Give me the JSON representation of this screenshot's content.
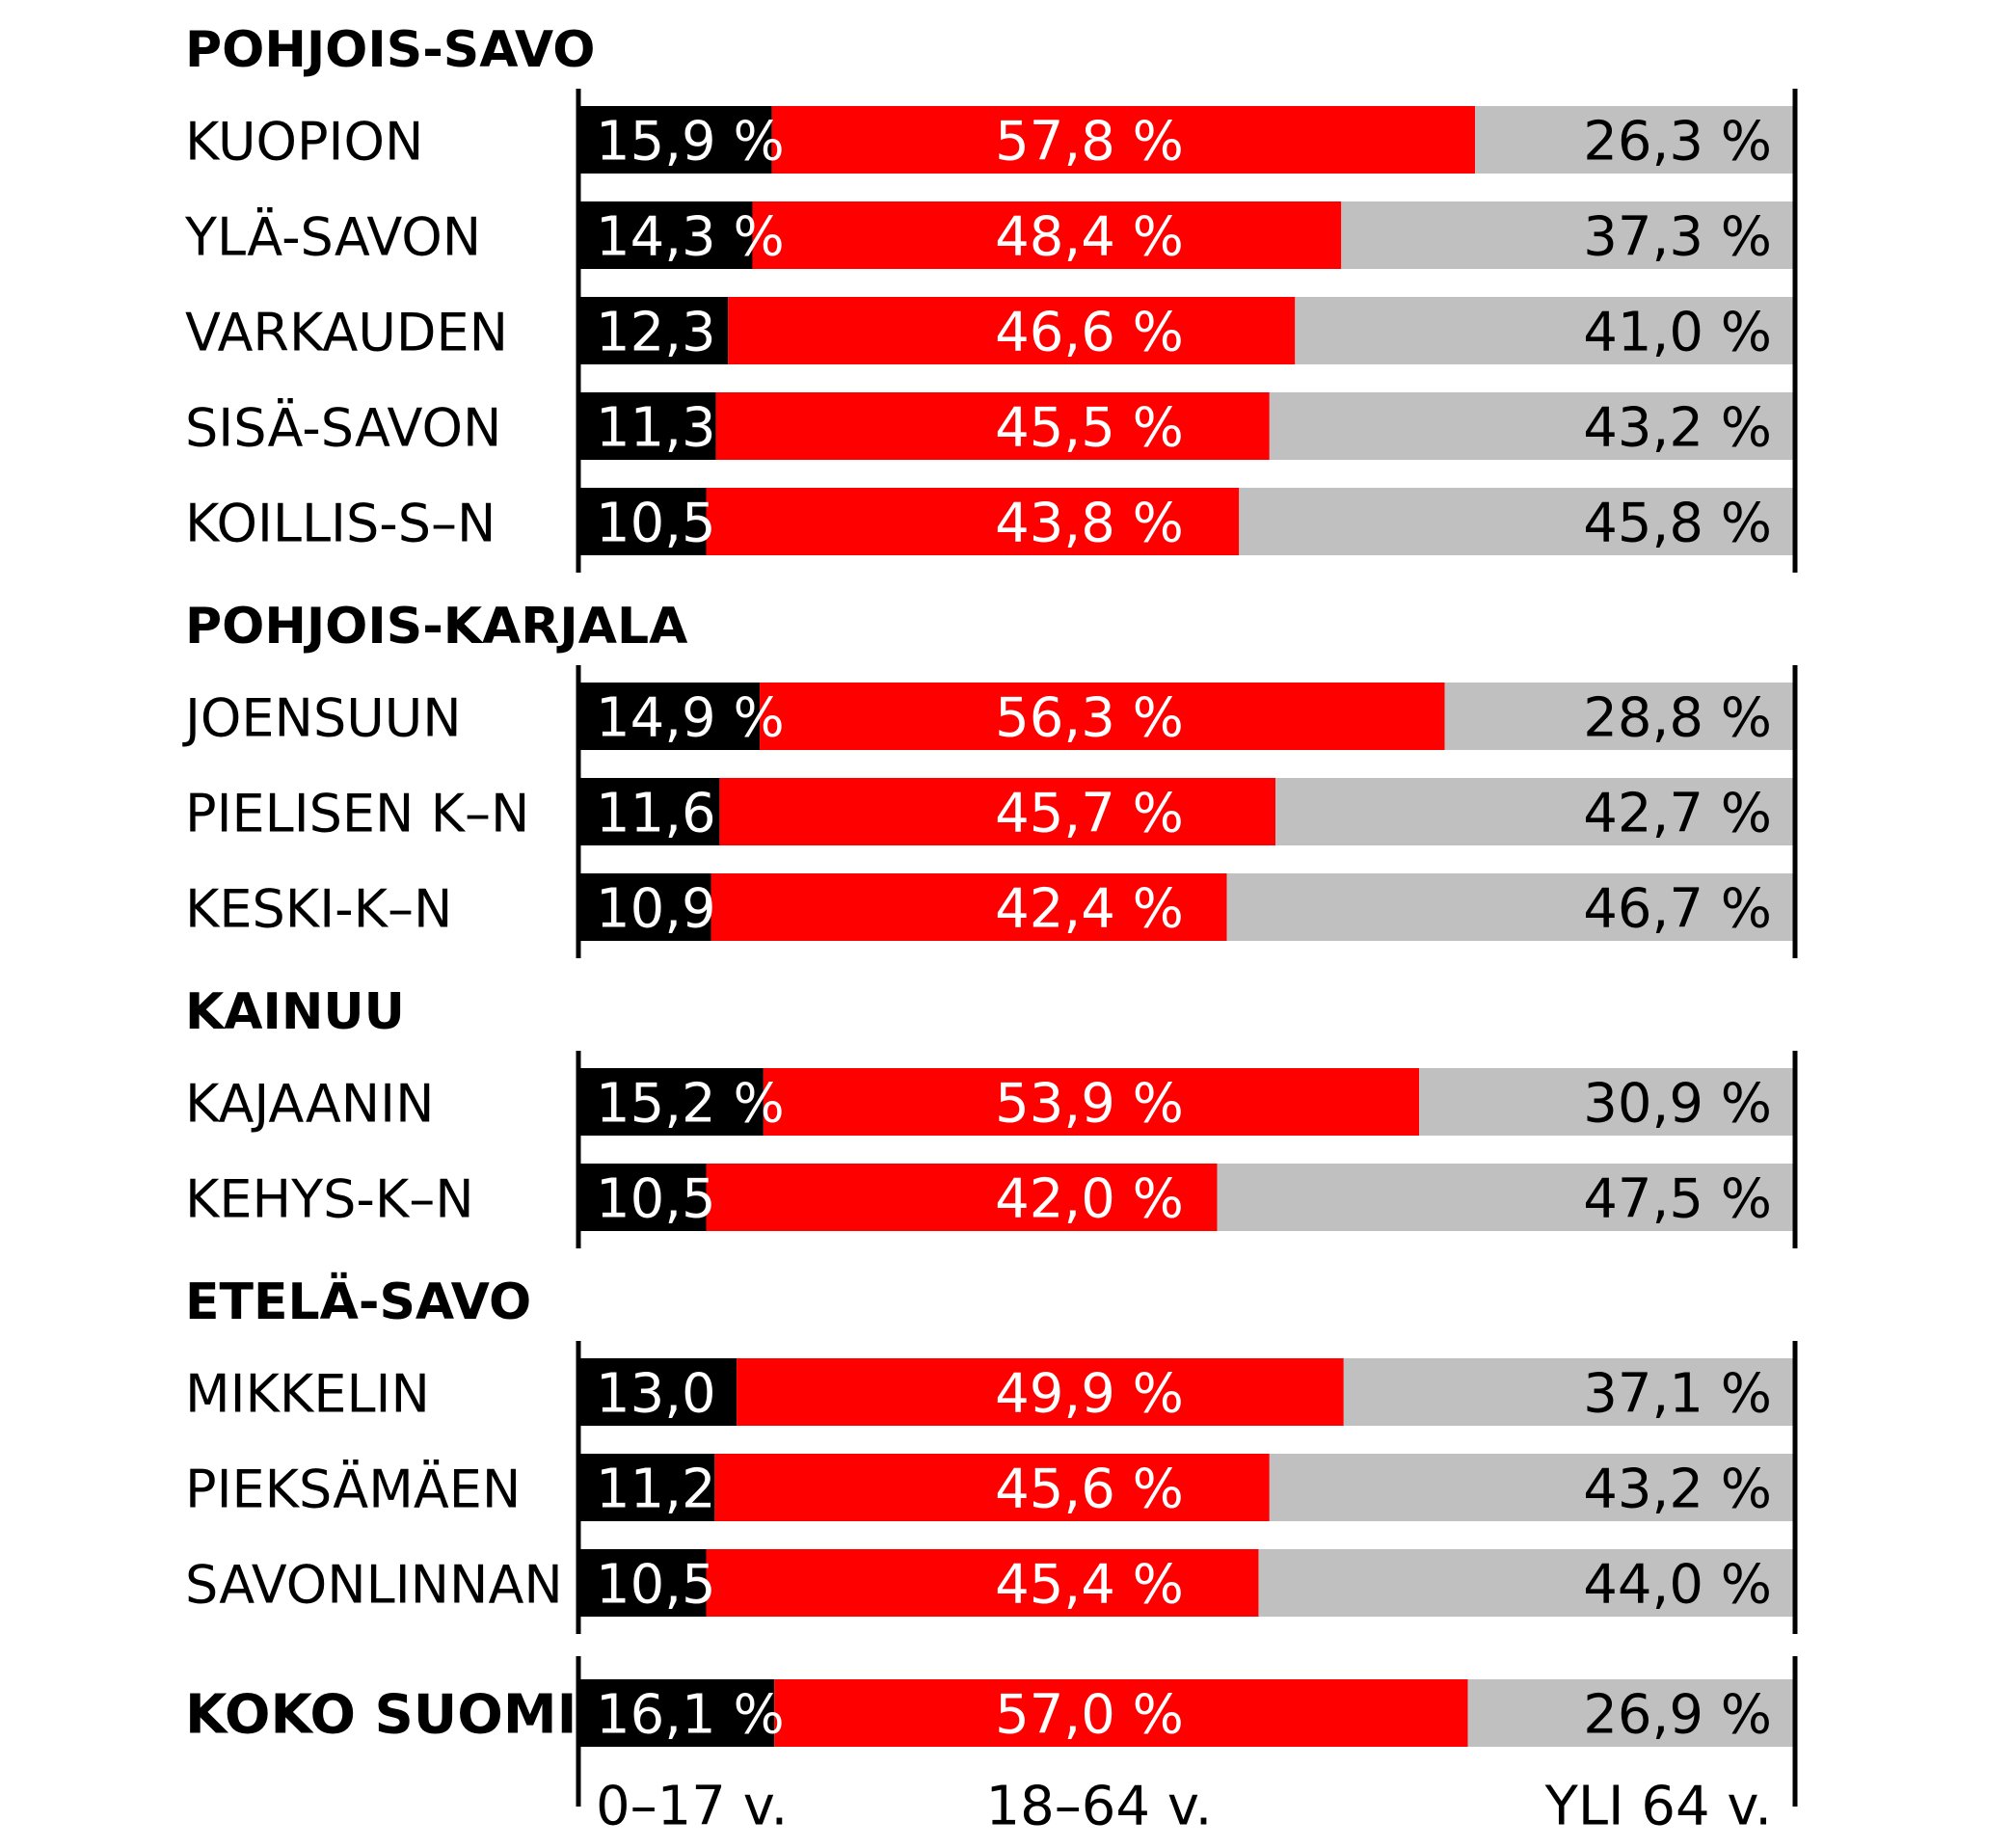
{
  "chart_data": {
    "type": "bar",
    "stacked": true,
    "orientation": "horizontal",
    "colors": {
      "young": "#000000",
      "working": "#ff0000",
      "old": "#c0c0c0"
    },
    "groups": [
      {
        "title": "POHJOIS-SAVO",
        "rows": [
          {
            "label": "KUOPION",
            "values": [
              15.9,
              57.8,
              26.3
            ],
            "labels": [
              "15,9 %",
              "57,8 %",
              "26,3 %"
            ]
          },
          {
            "label": "YLÄ-SAVON",
            "values": [
              14.3,
              48.4,
              37.3
            ],
            "labels": [
              "14,3 %",
              "48,4 %",
              "37,3 %"
            ]
          },
          {
            "label": "VARKAUDEN",
            "values": [
              12.3,
              46.6,
              41.0
            ],
            "labels": [
              "12,3",
              "46,6 %",
              "41,0 %"
            ]
          },
          {
            "label": "SISÄ-SAVON",
            "values": [
              11.3,
              45.5,
              43.2
            ],
            "labels": [
              "11,3",
              "45,5 %",
              "43,2 %"
            ]
          },
          {
            "label": "KOILLIS-S–N",
            "values": [
              10.5,
              43.8,
              45.8
            ],
            "labels": [
              "10,5",
              "43,8 %",
              "45,8 %"
            ]
          }
        ]
      },
      {
        "title": "POHJOIS-KARJALA",
        "rows": [
          {
            "label": "JOENSUUN",
            "values": [
              14.9,
              56.3,
              28.8
            ],
            "labels": [
              "14,9 %",
              "56,3 %",
              "28,8 %"
            ]
          },
          {
            "label": "PIELISEN K–N",
            "values": [
              11.6,
              45.7,
              42.7
            ],
            "labels": [
              "11,6",
              "45,7 %",
              "42,7 %"
            ]
          },
          {
            "label": "KESKI-K–N",
            "values": [
              10.9,
              42.4,
              46.7
            ],
            "labels": [
              "10,9",
              "42,4 %",
              "46,7 %"
            ]
          }
        ]
      },
      {
        "title": "KAINUU",
        "rows": [
          {
            "label": "KAJAANIN",
            "values": [
              15.2,
              53.9,
              30.9
            ],
            "labels": [
              "15,2 %",
              "53,9 %",
              "30,9 %"
            ]
          },
          {
            "label": "KEHYS-K–N",
            "values": [
              10.5,
              42.0,
              47.5
            ],
            "labels": [
              "10,5",
              "42,0 %",
              "47,5 %"
            ]
          }
        ]
      },
      {
        "title": "ETELÄ-SAVO",
        "rows": [
          {
            "label": "MIKKELIN",
            "values": [
              13.0,
              49.9,
              37.1
            ],
            "labels": [
              "13,0",
              "49,9 %",
              "37,1 %"
            ]
          },
          {
            "label": "PIEKSÄMÄEN",
            "values": [
              11.2,
              45.6,
              43.2
            ],
            "labels": [
              "11,2",
              "45,6 %",
              "43,2 %"
            ]
          },
          {
            "label": "SAVONLINNAN",
            "values": [
              10.5,
              45.4,
              44.0
            ],
            "labels": [
              "10,5",
              "45,4 %",
              "44,0 %"
            ]
          }
        ]
      }
    ],
    "total": {
      "label": "KOKO SUOMI",
      "values": [
        16.1,
        57.0,
        26.9
      ],
      "labels": [
        "16,1 %",
        "57,0 %",
        "26,9 %"
      ]
    },
    "category_labels": [
      "0–17 v.",
      "18–64 v.",
      "YLI 64 v."
    ],
    "xlim": [
      0,
      100
    ]
  }
}
